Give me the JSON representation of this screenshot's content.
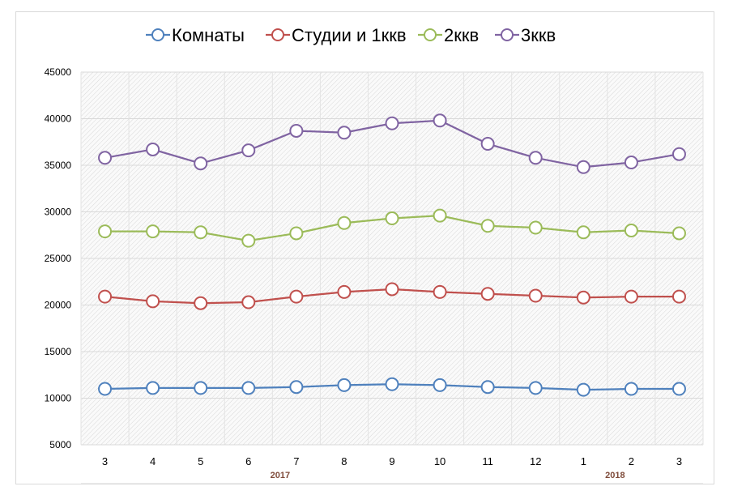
{
  "chart_data": {
    "type": "line",
    "title": "",
    "xlabel": "",
    "ylabel": "",
    "ylim": [
      5000,
      45000
    ],
    "yticks": [
      5000,
      10000,
      15000,
      20000,
      25000,
      30000,
      35000,
      40000,
      45000
    ],
    "grid": true,
    "legend_position": "top",
    "categories": [
      "3",
      "4",
      "5",
      "6",
      "7",
      "8",
      "9",
      "10",
      "11",
      "12",
      "1",
      "2",
      "3"
    ],
    "year_labels": [
      {
        "label": "2017",
        "category_index": 4
      },
      {
        "label": "2018",
        "category_index": 11
      }
    ],
    "series": [
      {
        "name": "Комнаты",
        "color": "#4f81bd",
        "values": [
          11000,
          11100,
          11100,
          11100,
          11200,
          11400,
          11500,
          11400,
          11200,
          11100,
          10900,
          11000,
          11000
        ]
      },
      {
        "name": "Студии и 1ккв",
        "color": "#c0504d",
        "values": [
          20900,
          20400,
          20200,
          20300,
          20900,
          21400,
          21700,
          21400,
          21200,
          21000,
          20800,
          20900,
          20900
        ]
      },
      {
        "name": "2ккв",
        "color": "#9bbb59",
        "values": [
          27900,
          27900,
          27800,
          26900,
          27700,
          28800,
          29300,
          29600,
          28500,
          28300,
          27800,
          28000,
          27700
        ]
      },
      {
        "name": "3ккв",
        "color": "#8064a2",
        "values": [
          35800,
          36700,
          35200,
          36600,
          38700,
          38500,
          39500,
          39800,
          37300,
          35800,
          34800,
          35300,
          36200
        ]
      }
    ]
  }
}
